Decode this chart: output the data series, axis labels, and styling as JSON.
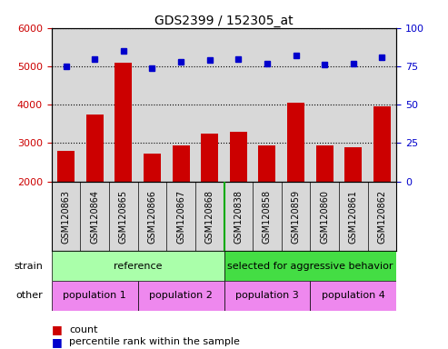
{
  "title": "GDS2399 / 152305_at",
  "samples": [
    "GSM120863",
    "GSM120864",
    "GSM120865",
    "GSM120866",
    "GSM120867",
    "GSM120868",
    "GSM120838",
    "GSM120858",
    "GSM120859",
    "GSM120860",
    "GSM120861",
    "GSM120862"
  ],
  "counts": [
    2800,
    3750,
    5100,
    2720,
    2950,
    3250,
    3300,
    2950,
    4050,
    2950,
    2900,
    3950
  ],
  "percentile_ranks": [
    75,
    80,
    85,
    74,
    78,
    79,
    80,
    77,
    82,
    76,
    77,
    81
  ],
  "ylim_left": [
    2000,
    6000
  ],
  "ylim_right": [
    0,
    100
  ],
  "yticks_left": [
    2000,
    3000,
    4000,
    5000,
    6000
  ],
  "yticks_right": [
    0,
    25,
    50,
    75,
    100
  ],
  "bar_color": "#cc0000",
  "dot_color": "#0000cc",
  "plot_bg": "#d8d8d8",
  "strain_ref_color": "#aaffaa",
  "strain_sel_color": "#44dd44",
  "other_color": "#ee88ee",
  "tick_color_left": "#cc0000",
  "tick_color_right": "#0000cc",
  "label_strain": "strain",
  "label_other": "other",
  "bg_color": "#ffffff",
  "legend_count_color": "#cc0000",
  "legend_dot_color": "#0000cc"
}
